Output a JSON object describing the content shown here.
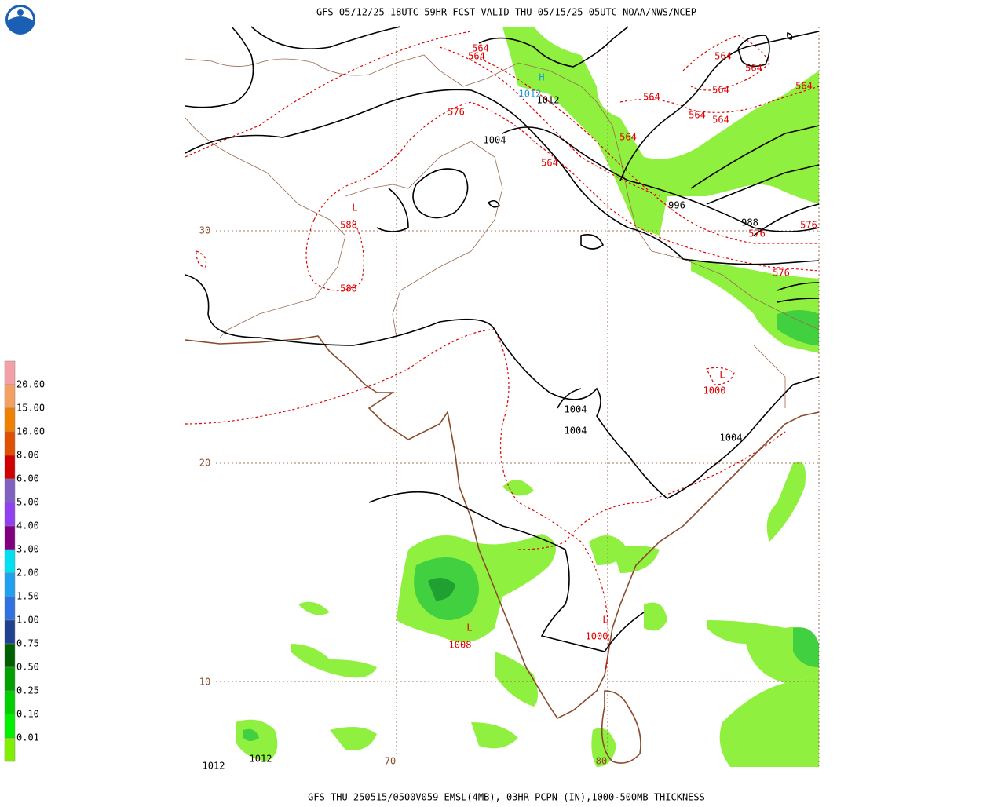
{
  "header": {
    "title": "GFS 05/12/25 18UTC 59HR FCST VALID THU 05/15/25 05UTC NOAA/NWS/NCEP"
  },
  "footer": {
    "caption": "GFS THU 250515/0500V059 EMSL(4MB), 03HR PCPN (IN),1000-500MB THICKNESS"
  },
  "legend": {
    "labels": [
      "20.00",
      "15.00",
      "10.00",
      "8.00",
      "6.00",
      "5.00",
      "4.00",
      "3.00",
      "2.00",
      "1.50",
      "1.00",
      "0.75",
      "0.50",
      "0.25",
      "0.10",
      "0.01"
    ]
  },
  "grid_labels": [
    "30",
    "20",
    "10",
    "70",
    "80"
  ],
  "map": {
    "labels": [
      "564",
      "564",
      "H",
      "1012",
      "1012",
      "576",
      "1004",
      "564",
      "564",
      "564",
      "564",
      "564",
      "564",
      "564",
      "564",
      "564",
      "996",
      "988",
      "576",
      "576",
      "576",
      "L",
      "588",
      "588",
      "L",
      "1000",
      "1004",
      "1004",
      "1004",
      "L",
      "1008",
      "L",
      "1000",
      "1012",
      "1012"
    ]
  }
}
